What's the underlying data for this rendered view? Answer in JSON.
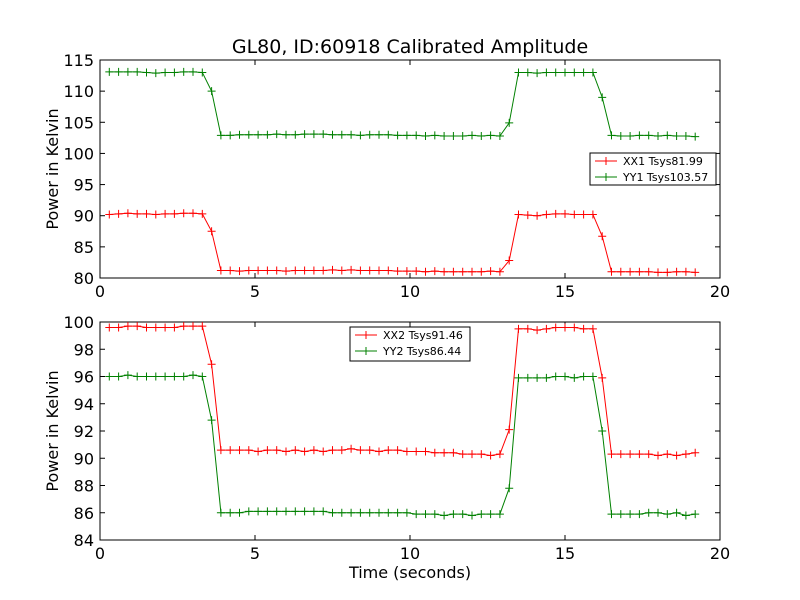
{
  "figure": {
    "title": "GL80, ID:60918 Calibrated Amplitude",
    "xlabel": "Time (seconds)"
  },
  "chart_data": [
    {
      "type": "line",
      "title": "GL80, ID:60918 Calibrated Amplitude",
      "xlabel": "",
      "ylabel": "Power in Kelvin",
      "xlim": [
        0,
        20
      ],
      "ylim": [
        80,
        115
      ],
      "xticks": [
        0,
        5,
        10,
        15,
        20
      ],
      "yticks": [
        80,
        85,
        90,
        95,
        100,
        105,
        110,
        115
      ],
      "grid": false,
      "legend_position": "right",
      "x": [
        0.3,
        0.6,
        0.9,
        1.2,
        1.5,
        1.8,
        2.1,
        2.4,
        2.7,
        3.0,
        3.3,
        3.6,
        3.9,
        4.2,
        4.5,
        4.8,
        5.1,
        5.4,
        5.7,
        6.0,
        6.3,
        6.6,
        6.9,
        7.2,
        7.5,
        7.8,
        8.1,
        8.4,
        8.7,
        9.0,
        9.3,
        9.6,
        9.9,
        10.2,
        10.5,
        10.8,
        11.1,
        11.4,
        11.7,
        12.0,
        12.3,
        12.6,
        12.9,
        13.2,
        13.5,
        13.8,
        14.1,
        14.4,
        14.7,
        15.0,
        15.3,
        15.6,
        15.9,
        16.2,
        16.5,
        16.8,
        17.1,
        17.4,
        17.7,
        18.0,
        18.3,
        18.6,
        18.9,
        19.2
      ],
      "series": [
        {
          "name": "XX1 Tsys81.99",
          "color": "#ff0000",
          "values": [
            90.2,
            90.3,
            90.4,
            90.3,
            90.3,
            90.2,
            90.3,
            90.3,
            90.4,
            90.4,
            90.3,
            87.5,
            81.2,
            81.2,
            81.1,
            81.2,
            81.2,
            81.2,
            81.2,
            81.1,
            81.2,
            81.2,
            81.2,
            81.2,
            81.3,
            81.2,
            81.3,
            81.2,
            81.2,
            81.2,
            81.2,
            81.1,
            81.1,
            81.1,
            81.0,
            81.1,
            81.0,
            81.0,
            81.0,
            81.0,
            81.0,
            81.1,
            81.0,
            82.8,
            90.2,
            90.1,
            90.0,
            90.2,
            90.3,
            90.3,
            90.2,
            90.2,
            90.2,
            86.7,
            81.0,
            81.0,
            81.0,
            81.0,
            81.0,
            80.9,
            80.9,
            81.0,
            81.0,
            80.9
          ]
        },
        {
          "name": "YY1 Tsys103.57",
          "color": "#008000",
          "values": [
            113.1,
            113.1,
            113.1,
            113.1,
            113.0,
            112.9,
            113.0,
            113.0,
            113.1,
            113.1,
            113.0,
            110.0,
            102.9,
            102.9,
            103.0,
            103.0,
            103.0,
            103.0,
            103.1,
            103.0,
            103.0,
            103.1,
            103.1,
            103.1,
            103.0,
            103.0,
            103.0,
            102.9,
            103.0,
            103.0,
            103.0,
            102.9,
            102.9,
            102.9,
            102.8,
            102.9,
            102.8,
            102.8,
            102.8,
            102.9,
            102.8,
            102.9,
            102.8,
            104.9,
            113.0,
            113.0,
            112.9,
            113.0,
            113.0,
            113.0,
            113.0,
            113.0,
            113.0,
            109.0,
            102.9,
            102.8,
            102.8,
            102.9,
            102.9,
            102.8,
            102.9,
            102.8,
            102.8,
            102.7
          ]
        }
      ]
    },
    {
      "type": "line",
      "title": "",
      "xlabel": "Time (seconds)",
      "ylabel": "Power in Kelvin",
      "xlim": [
        0,
        20
      ],
      "ylim": [
        84,
        100
      ],
      "xticks": [
        0,
        5,
        10,
        15,
        20
      ],
      "yticks": [
        84,
        86,
        88,
        90,
        92,
        94,
        96,
        98,
        100
      ],
      "grid": false,
      "legend_position": "top-center",
      "x": [
        0.3,
        0.6,
        0.9,
        1.2,
        1.5,
        1.8,
        2.1,
        2.4,
        2.7,
        3.0,
        3.3,
        3.6,
        3.9,
        4.2,
        4.5,
        4.8,
        5.1,
        5.4,
        5.7,
        6.0,
        6.3,
        6.6,
        6.9,
        7.2,
        7.5,
        7.8,
        8.1,
        8.4,
        8.7,
        9.0,
        9.3,
        9.6,
        9.9,
        10.2,
        10.5,
        10.8,
        11.1,
        11.4,
        11.7,
        12.0,
        12.3,
        12.6,
        12.9,
        13.2,
        13.5,
        13.8,
        14.1,
        14.4,
        14.7,
        15.0,
        15.3,
        15.6,
        15.9,
        16.2,
        16.5,
        16.8,
        17.1,
        17.4,
        17.7,
        18.0,
        18.3,
        18.6,
        18.9,
        19.2
      ],
      "series": [
        {
          "name": "XX2 Tsys91.46",
          "color": "#ff0000",
          "values": [
            99.6,
            99.6,
            99.7,
            99.7,
            99.6,
            99.6,
            99.6,
            99.6,
            99.7,
            99.7,
            99.7,
            96.9,
            90.6,
            90.6,
            90.6,
            90.6,
            90.5,
            90.6,
            90.6,
            90.5,
            90.6,
            90.5,
            90.6,
            90.5,
            90.6,
            90.6,
            90.7,
            90.6,
            90.6,
            90.5,
            90.6,
            90.6,
            90.5,
            90.5,
            90.5,
            90.4,
            90.4,
            90.4,
            90.3,
            90.3,
            90.3,
            90.2,
            90.3,
            92.1,
            99.5,
            99.5,
            99.4,
            99.5,
            99.6,
            99.6,
            99.6,
            99.5,
            99.5,
            95.9,
            90.3,
            90.3,
            90.3,
            90.3,
            90.3,
            90.2,
            90.3,
            90.2,
            90.3,
            90.4
          ]
        },
        {
          "name": "YY2 Tsys86.44",
          "color": "#008000",
          "values": [
            96.0,
            96.0,
            96.1,
            96.0,
            96.0,
            96.0,
            96.0,
            96.0,
            96.0,
            96.1,
            96.0,
            92.8,
            86.0,
            86.0,
            86.0,
            86.1,
            86.1,
            86.1,
            86.1,
            86.1,
            86.1,
            86.1,
            86.1,
            86.1,
            86.0,
            86.0,
            86.0,
            86.0,
            86.0,
            86.0,
            86.0,
            86.0,
            86.0,
            85.9,
            85.9,
            85.9,
            85.8,
            85.9,
            85.9,
            85.8,
            85.9,
            85.9,
            85.9,
            87.8,
            95.9,
            95.9,
            95.9,
            95.9,
            96.0,
            96.0,
            95.9,
            96.0,
            96.0,
            92.0,
            85.9,
            85.9,
            85.9,
            85.9,
            86.0,
            86.0,
            85.9,
            86.0,
            85.8,
            85.9
          ]
        }
      ]
    }
  ]
}
